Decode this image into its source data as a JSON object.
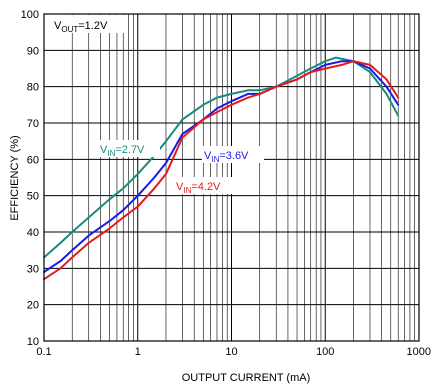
{
  "chart_data": {
    "type": "line",
    "xlabel": "OUTPUT CURRENT (mA)",
    "ylabel": "EFFICIENCY (%)",
    "x_scale": "log",
    "xlim": [
      0.1,
      1000
    ],
    "ylim": [
      10,
      100
    ],
    "x_ticks": [
      "0.1",
      "1",
      "10",
      "100",
      "1000"
    ],
    "y_ticks": [
      "10",
      "20",
      "30",
      "40",
      "50",
      "60",
      "70",
      "80",
      "90",
      "100"
    ],
    "grid": true,
    "annotations": {
      "vout": {
        "main": "V",
        "sub": "OUT",
        "rest": "=1.2V",
        "color": "#000000"
      },
      "v27": {
        "main": "V",
        "sub": "IN",
        "rest": "=2.7V",
        "color": "#1a8a7a"
      },
      "v36": {
        "main": "V",
        "sub": "IN",
        "rest": "=3.6V",
        "color": "#1a1ae6"
      },
      "v42": {
        "main": "V",
        "sub": "IN",
        "rest": "=4.2V",
        "color": "#e61a1a"
      }
    },
    "series": [
      {
        "color": "#1a8a7a",
        "x": [
          0.1,
          0.15,
          0.2,
          0.3,
          0.5,
          0.7,
          1,
          1.5,
          2,
          3,
          5,
          7,
          10,
          15,
          20,
          30,
          50,
          70,
          100,
          130,
          200,
          300,
          450,
          600
        ],
        "y": [
          33,
          37,
          40,
          44,
          49,
          52,
          56,
          61,
          65,
          71,
          75,
          77,
          78,
          79,
          79,
          80,
          83,
          85,
          87,
          88,
          87,
          84,
          78,
          72
        ]
      },
      {
        "color": "#1a1ae6",
        "x": [
          0.1,
          0.15,
          0.2,
          0.3,
          0.5,
          0.7,
          1,
          1.5,
          2,
          3,
          5,
          7,
          10,
          15,
          20,
          30,
          50,
          70,
          100,
          150,
          200,
          300,
          450,
          600
        ],
        "y": [
          29,
          32,
          35,
          39,
          43,
          46,
          50,
          55,
          59,
          67,
          71,
          74,
          76,
          78,
          78,
          80,
          82,
          84,
          86,
          87,
          87,
          85,
          80,
          75
        ]
      },
      {
        "color": "#e61a1a",
        "x": [
          0.1,
          0.15,
          0.2,
          0.3,
          0.5,
          0.7,
          1,
          1.5,
          2,
          3,
          5,
          7,
          10,
          15,
          20,
          30,
          50,
          70,
          100,
          150,
          200,
          300,
          450,
          600
        ],
        "y": [
          27,
          30,
          33,
          37,
          41,
          44,
          47,
          52,
          56,
          66,
          71,
          73,
          75,
          77,
          78,
          80,
          82,
          84,
          85,
          86,
          87,
          86,
          82,
          77
        ]
      }
    ]
  }
}
